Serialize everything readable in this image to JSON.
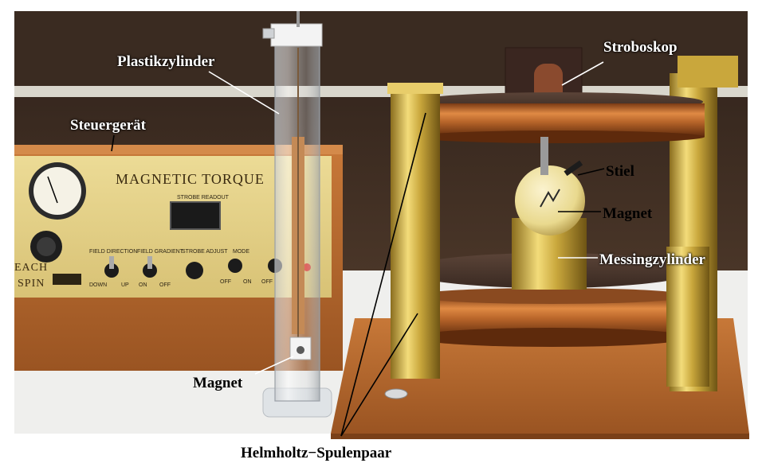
{
  "labels": {
    "stroboskop": "Stroboskop",
    "plastikzylinder": "Plastikzylinder",
    "steuergeraet": "Steuergerät",
    "stiel": "Stiel",
    "magnet_right": "Magnet",
    "messingzylinder": "Messingzylinder",
    "magnet_left": "Magnet",
    "helmholtz": "Helmholtz−Spulenpaar"
  },
  "device": {
    "brand_title": "MAGNETIC TORQUE",
    "readout_label": "STROBE READOUT",
    "logo_line1": "EACH",
    "logo_line2": "SPIN",
    "knob_labels": [
      "FIELD DIRECTION",
      "FIELD GRADIENT",
      "STROBE ADJUST",
      "MODE"
    ],
    "switch_labels": [
      "DOWN",
      "UP",
      "ON",
      "OFF",
      "OFF",
      "ON",
      "OFF"
    ]
  },
  "colors": {
    "wall": "#3b2a21",
    "wood": "#b8672e",
    "panel": "#e6d48a",
    "brass": "#c9a73c",
    "copper": "#b8652a",
    "label_text": "#000000"
  }
}
